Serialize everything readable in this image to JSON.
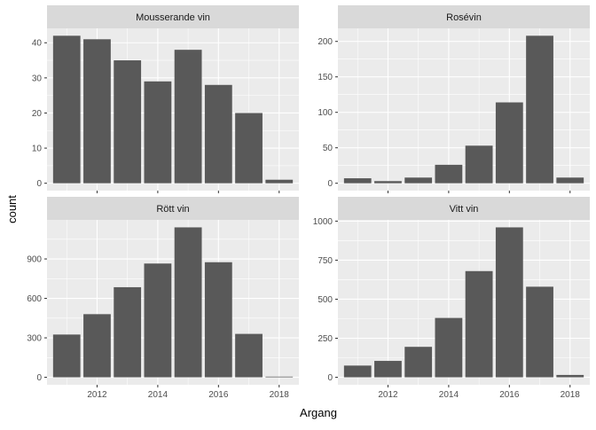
{
  "chart_data": {
    "type": "bar",
    "xlabel": "Argang",
    "ylabel": "count",
    "x_ticks": [
      2012,
      2014,
      2016,
      2018
    ],
    "xlim": [
      2010.35,
      2018.65
    ],
    "grid": true,
    "bar_color": "#595959",
    "panel_background": "#EBEBEB",
    "strip_background": "#D9D9D9",
    "panels": [
      {
        "title": "Mousserande vin",
        "x": [
          2011,
          2012,
          2013,
          2014,
          2015,
          2016,
          2017,
          2018
        ],
        "values": [
          42,
          41,
          35,
          29,
          38,
          28,
          20,
          1
        ],
        "ylim": [
          -2.1,
          44.1
        ],
        "y_ticks": [
          0,
          10,
          20,
          30,
          40
        ]
      },
      {
        "title": "Rosévin",
        "x": [
          2011,
          2012,
          2013,
          2014,
          2015,
          2016,
          2017,
          2018
        ],
        "values": [
          7,
          3,
          8,
          26,
          53,
          114,
          208,
          8
        ],
        "ylim": [
          -10.4,
          218.4
        ],
        "y_ticks": [
          0,
          50,
          100,
          150,
          200
        ]
      },
      {
        "title": "Rött vin",
        "x": [
          2011,
          2012,
          2013,
          2014,
          2015,
          2016,
          2017,
          2018
        ],
        "values": [
          325,
          480,
          685,
          865,
          1140,
          875,
          330,
          5
        ],
        "ylim": [
          -57,
          1197
        ],
        "y_ticks": [
          0,
          300,
          600,
          900
        ]
      },
      {
        "title": "Vitt vin",
        "x": [
          2011,
          2012,
          2013,
          2014,
          2015,
          2016,
          2017,
          2018
        ],
        "values": [
          75,
          105,
          195,
          380,
          680,
          960,
          580,
          15
        ],
        "ylim": [
          -48,
          1008
        ],
        "y_ticks": [
          0,
          250,
          500,
          750,
          1000
        ]
      }
    ]
  }
}
